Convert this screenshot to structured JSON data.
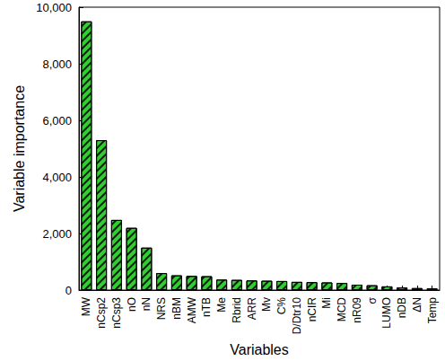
{
  "chart_data": {
    "type": "bar",
    "x_label": "Variables",
    "y_label": "Variable importance",
    "categories": [
      "MW",
      "nCsp2",
      "nCsp3",
      "nO",
      "nN",
      "NRS",
      "nBM",
      "AMW",
      "nTB",
      "Me",
      "Rbrid",
      "ARR",
      "Mv",
      "C%",
      "D/Dtr10",
      "nCIR",
      "Mi",
      "MCD",
      "nR09",
      "σ",
      "LUMO",
      "nDB",
      "ΔN",
      "Temp"
    ],
    "values": [
      9500,
      5300,
      2480,
      2200,
      1500,
      600,
      520,
      500,
      490,
      370,
      360,
      340,
      330,
      320,
      290,
      280,
      270,
      250,
      190,
      170,
      130,
      90,
      70,
      60
    ],
    "color": "#33cc33",
    "ylim": [
      0,
      10000
    ],
    "yticks": [
      0,
      2000,
      4000,
      6000,
      8000,
      10000
    ],
    "grid": false
  }
}
